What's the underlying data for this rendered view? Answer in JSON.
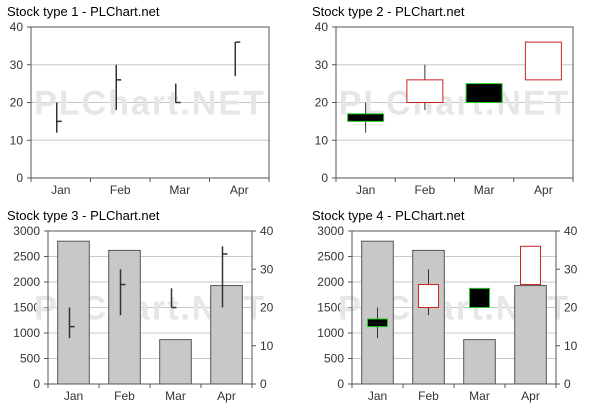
{
  "watermark": "PLChart.NET",
  "colors": {
    "plot_bg": "#ffffff",
    "grid": "#c8c8c8",
    "axis": "#555555",
    "tick_text": "#333333",
    "title_text": "#000000",
    "bar_fill": "#c8c8c8",
    "bar_stroke": "#555555",
    "stick": "#333333",
    "box_up_fill": "#ffffff",
    "box_up_stroke": "#cc2222",
    "box_down_fill": "#000000",
    "box_down_stroke": "#22cc22",
    "watermark": "#e6e6e6"
  },
  "chart_data": [
    {
      "type": "stock",
      "style": "hloc",
      "title": "Stock type 1 - PLChart.net",
      "categories": [
        "Jan",
        "Feb",
        "Mar",
        "Apr"
      ],
      "yticks": [
        "0",
        "10",
        "20",
        "30",
        "40"
      ],
      "ylim": [
        0,
        40
      ],
      "grid": true,
      "ohlc": [
        {
          "open": 15,
          "high": 20,
          "low": 12,
          "close": 15
        },
        {
          "open": 26,
          "high": 30,
          "low": 18,
          "close": 26
        },
        {
          "open": 25,
          "high": 25,
          "low": 20,
          "close": 20
        },
        {
          "open": 36,
          "high": 36,
          "low": 27,
          "close": 36
        }
      ]
    },
    {
      "type": "stock",
      "style": "candlestick",
      "title": "Stock type 2 - PLChart.net",
      "categories": [
        "Jan",
        "Feb",
        "Mar",
        "Apr"
      ],
      "yticks": [
        "0",
        "10",
        "20",
        "30",
        "40"
      ],
      "ylim": [
        0,
        40
      ],
      "grid": true,
      "ohlc": [
        {
          "open": 17,
          "high": 20,
          "low": 12,
          "close": 15
        },
        {
          "open": 20,
          "high": 30,
          "low": 18,
          "close": 26
        },
        {
          "open": 25,
          "high": 25,
          "low": 20,
          "close": 20
        },
        {
          "open": 26,
          "high": 36,
          "low": 26,
          "close": 36
        }
      ]
    },
    {
      "type": "bar+stock",
      "style": "hloc",
      "title": "Stock type 3 - PLChart.net",
      "categories": [
        "Jan",
        "Feb",
        "Mar",
        "Apr"
      ],
      "yticks_left": [
        "0",
        "500",
        "1000",
        "1500",
        "2000",
        "2500",
        "3000"
      ],
      "yticks_right": [
        "0",
        "10",
        "20",
        "30",
        "40"
      ],
      "ylim_left": [
        0,
        3000
      ],
      "ylim_right": [
        0,
        40
      ],
      "grid": true,
      "bar_values": [
        2800,
        2620,
        870,
        1930
      ],
      "ohlc": [
        {
          "open": 15,
          "high": 20,
          "low": 12,
          "close": 15
        },
        {
          "open": 26,
          "high": 30,
          "low": 18,
          "close": 26
        },
        {
          "open": 25,
          "high": 25,
          "low": 20,
          "close": 20
        },
        {
          "open": 34,
          "high": 36,
          "low": 20,
          "close": 34
        }
      ]
    },
    {
      "type": "bar+stock",
      "style": "candlestick",
      "title": "Stock type 4 - PLChart.net",
      "categories": [
        "Jan",
        "Feb",
        "Mar",
        "Apr"
      ],
      "yticks_left": [
        "0",
        "500",
        "1000",
        "1500",
        "2000",
        "2500",
        "3000"
      ],
      "yticks_right": [
        "0",
        "10",
        "20",
        "30",
        "40"
      ],
      "ylim_left": [
        0,
        3000
      ],
      "ylim_right": [
        0,
        40
      ],
      "grid": true,
      "bar_values": [
        2800,
        2620,
        870,
        1930
      ],
      "ohlc": [
        {
          "open": 17,
          "high": 20,
          "low": 12,
          "close": 15
        },
        {
          "open": 20,
          "high": 30,
          "low": 18,
          "close": 26
        },
        {
          "open": 25,
          "high": 25,
          "low": 20,
          "close": 20
        },
        {
          "open": 26,
          "high": 36,
          "low": 26,
          "close": 36
        }
      ]
    }
  ]
}
